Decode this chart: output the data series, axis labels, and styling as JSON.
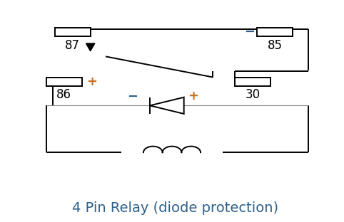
{
  "title": "4 Pin Relay (diode protection)",
  "title_color": "#2c5f8a",
  "title_fontsize": 14,
  "bg_color": "#ffffff",
  "line_color": "#000000",
  "label_color": "#000000",
  "plus_minus_color": "#c87020",
  "plus_minus_color2": "#2c5f8a",
  "figsize": [
    4.82,
    3.12
  ],
  "dpi": 100
}
